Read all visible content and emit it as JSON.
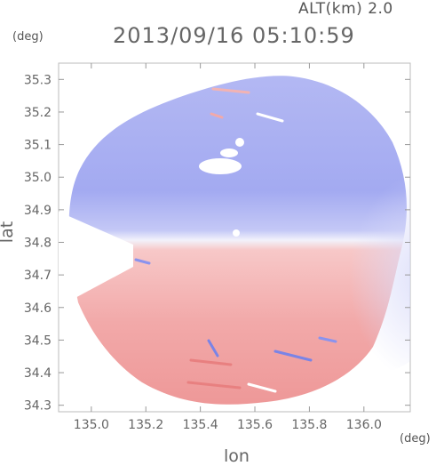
{
  "header": {
    "altitude_label": "ALT(km) 2.0",
    "timestamp": "2013/09/16 05:10:59",
    "y_unit": "(deg)",
    "x_unit": "(deg)"
  },
  "axes": {
    "xlabel": "lon",
    "ylabel": "lat",
    "xlim": [
      134.88,
      136.17
    ],
    "ylim": [
      34.28,
      35.35
    ],
    "x_ticks": [
      "135.0",
      "135.2",
      "135.4",
      "135.6",
      "135.8",
      "136.0"
    ],
    "x_tick_values": [
      135.0,
      135.2,
      135.4,
      135.6,
      135.8,
      136.0
    ],
    "y_ticks": [
      "34.3",
      "34.4",
      "34.5",
      "34.6",
      "34.7",
      "34.8",
      "34.9",
      "35.0",
      "35.1",
      "35.2",
      "35.3"
    ],
    "y_tick_values": [
      34.3,
      34.4,
      34.5,
      34.6,
      34.7,
      34.8,
      34.9,
      35.0,
      35.1,
      35.2,
      35.3
    ]
  },
  "radar": {
    "center_lon": 135.5,
    "center_lat": 34.81,
    "colors": {
      "approaching": "#8a93ee",
      "receding": "#ee8a8a",
      "neutral": "#ffffff",
      "frame": "#bbbbbb"
    }
  }
}
